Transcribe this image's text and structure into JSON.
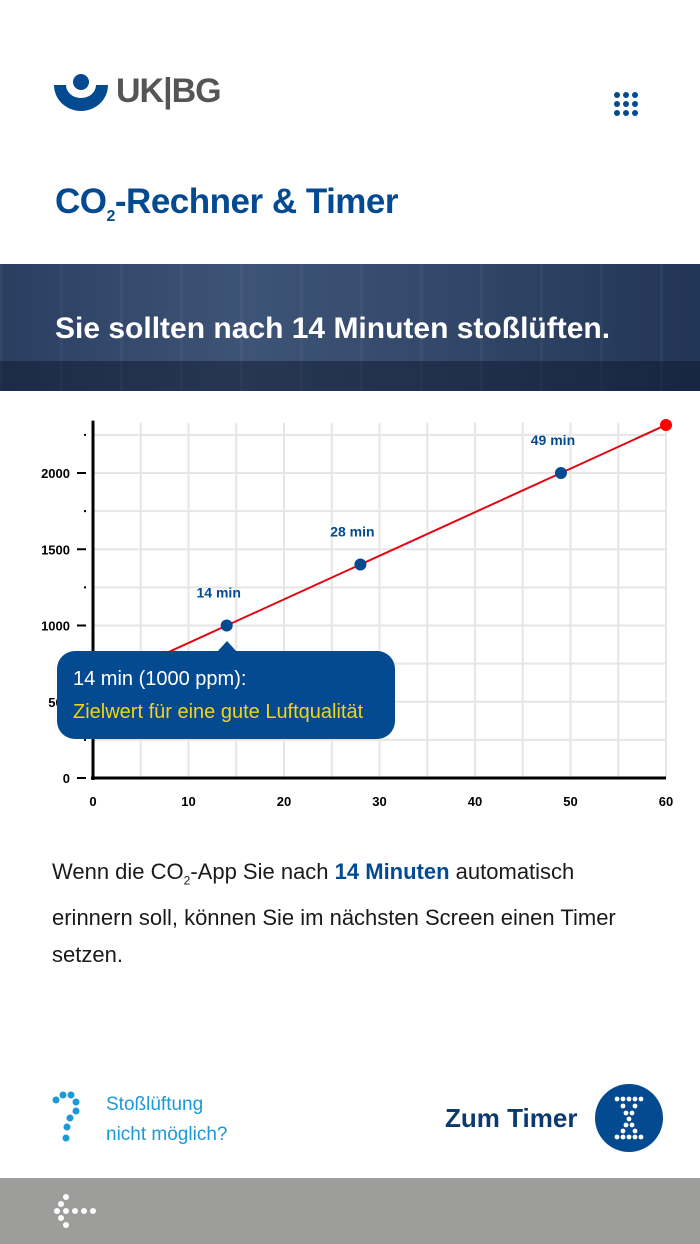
{
  "header": {
    "logo_text": "UK|BG",
    "menu_icon": "grid-menu-icon"
  },
  "title": {
    "main": "CO",
    "sub": "2",
    "rest": "-Rechner & Timer"
  },
  "banner": {
    "text": "Sie sollten nach 14 Minuten stoßlüften."
  },
  "chart_data": {
    "type": "line",
    "x": [
      0,
      14,
      28,
      49,
      60
    ],
    "values": [
      600,
      1000,
      1400,
      2000,
      2315
    ],
    "xlim": [
      0,
      60
    ],
    "ylim": [
      0,
      2330
    ],
    "x_ticks": [
      "0",
      "10",
      "20",
      "30",
      "40",
      "50",
      "60"
    ],
    "y_ticks": [
      "0",
      "500",
      "1000",
      "1500",
      "2000"
    ],
    "grid": true,
    "line_color": "#e30613",
    "point_color": "#034a91",
    "end_point_color": "#ff0000",
    "annotations": [
      {
        "x": 14,
        "y": 1000,
        "label": "14 min"
      },
      {
        "x": 28,
        "y": 1400,
        "label": "28 min"
      },
      {
        "x": 49,
        "y": 2000,
        "label": "49 min"
      }
    ]
  },
  "tooltip": {
    "line1": "14 min (1000 ppm):",
    "line2": "Zielwert für eine gute Luftqualität"
  },
  "body": {
    "p1": "Wenn die CO",
    "sub": "2",
    "p2": "-App Sie nach ",
    "bold": "14 Minuten",
    "p3": " automatisch erinnern soll, können Sie im nächsten Screen einen Timer setzen."
  },
  "help": {
    "label_line1": "Stoßlüftung",
    "label_line2": "nicht möglich?"
  },
  "timer": {
    "label": "Zum Timer"
  },
  "colors": {
    "primary": "#034a91",
    "accent": "#1b9ad6",
    "footer": "#9d9d9c",
    "highlight": "#f2d21b"
  }
}
